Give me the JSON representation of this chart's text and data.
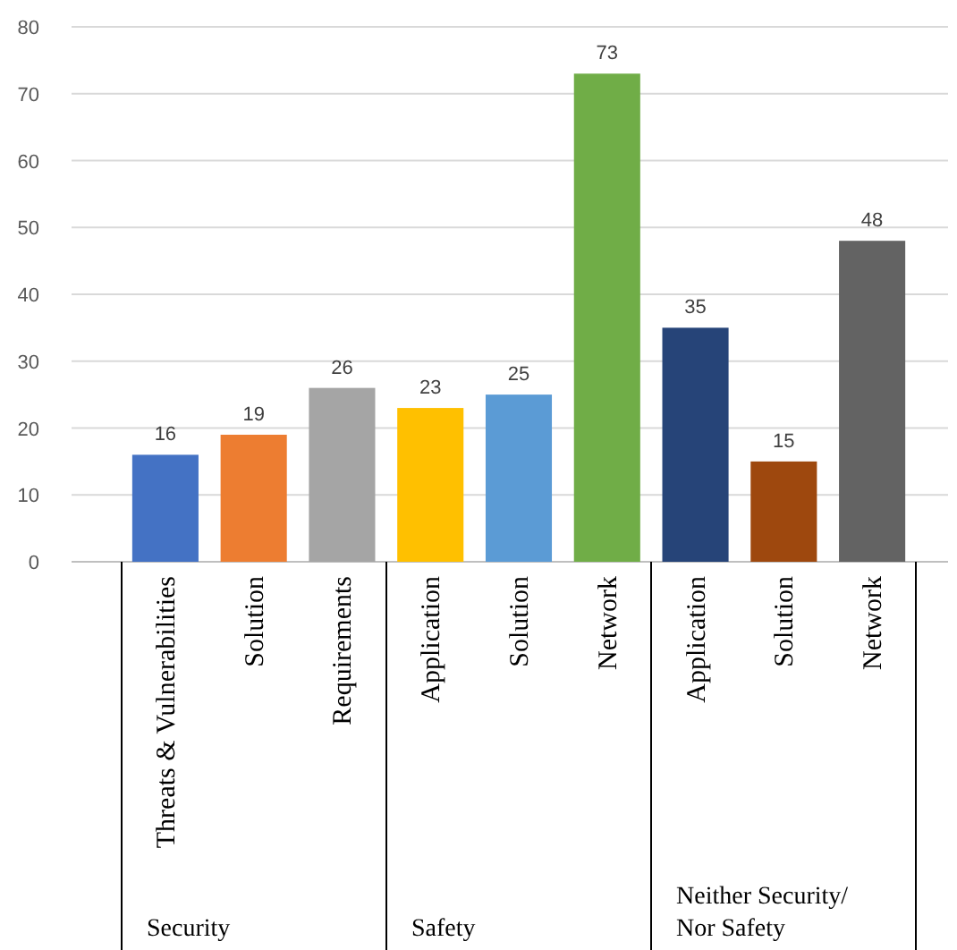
{
  "chart_data": {
    "type": "bar",
    "categories": [
      "Threats & Vulnerabilities",
      "Solution",
      "Requirements",
      "Application",
      "Solution",
      "Network",
      "Application",
      "Solution",
      "Network"
    ],
    "values": [
      16,
      19,
      26,
      23,
      25,
      73,
      35,
      15,
      48
    ],
    "colors": [
      "#4472c4",
      "#ed7d31",
      "#a5a5a5",
      "#ffc000",
      "#5b9bd5",
      "#70ad47",
      "#264478",
      "#9e480e",
      "#636363"
    ],
    "ylim": [
      0,
      80
    ],
    "yticks": [
      0,
      10,
      20,
      30,
      40,
      50,
      60,
      70,
      80
    ],
    "grid": "y",
    "data_labels": true,
    "annotations": [
      "Security",
      "Safety",
      "Neither Security/ Nor Safety"
    ]
  }
}
